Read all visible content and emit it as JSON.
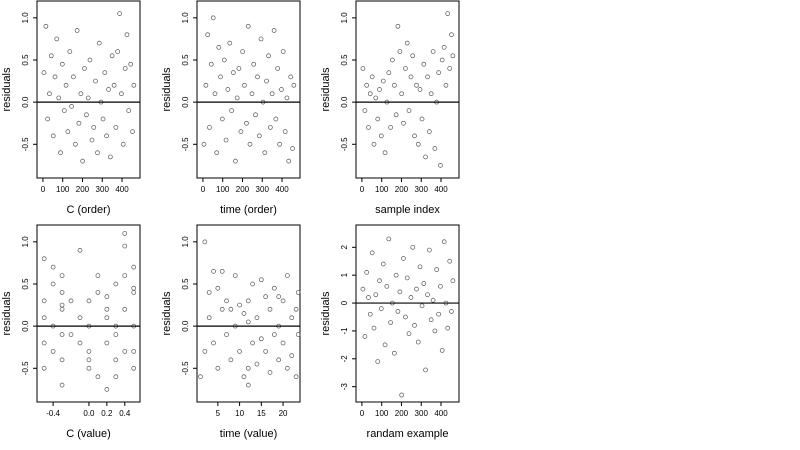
{
  "chart_data": [
    {
      "type": "scatter",
      "xlabel": "C (order)",
      "ylabel": "residuals",
      "color": "#555",
      "hline": 0,
      "xlim": [
        -30,
        491
      ],
      "ylim": [
        -0.9,
        1.2
      ],
      "xticks": [
        0,
        100,
        200,
        300,
        400
      ],
      "yticks": [
        {
          "value": 1,
          "label": "1.0"
        },
        0.5,
        {
          "value": 0,
          "label": "0.0"
        },
        -0.5
      ],
      "x": [
        5,
        15,
        24,
        33,
        42,
        52,
        61,
        70,
        80,
        89,
        98,
        108,
        117,
        126,
        136,
        145,
        154,
        164,
        173,
        182,
        192,
        201,
        210,
        220,
        229,
        238,
        248,
        257,
        266,
        276,
        285,
        294,
        304,
        313,
        322,
        332,
        341,
        350,
        360,
        369,
        378,
        388,
        397,
        406,
        416,
        425,
        434,
        444,
        453,
        460
      ],
      "values": [
        0.35,
        0.9,
        -0.2,
        0.1,
        0.55,
        -0.4,
        0.3,
        0.75,
        0.05,
        -0.6,
        0.45,
        -0.1,
        0.2,
        -0.35,
        0.6,
        -0.05,
        0.3,
        -0.5,
        0.85,
        -0.25,
        0.1,
        -0.7,
        0.4,
        -0.15,
        0.05,
        0.5,
        -0.45,
        -0.3,
        0.25,
        -0.6,
        0.7,
        0.0,
        -0.2,
        0.35,
        -0.4,
        0.15,
        -0.65,
        0.55,
        0.2,
        -0.3,
        0.6,
        1.05,
        0.1,
        -0.5,
        0.4,
        0.8,
        -0.1,
        0.45,
        -0.35,
        0.2
      ]
    },
    {
      "type": "scatter",
      "xlabel": "time (order)",
      "ylabel": "residuals",
      "color": "#555",
      "hline": 0,
      "xlim": [
        -30,
        491
      ],
      "ylim": [
        -0.9,
        1.2
      ],
      "xticks": [
        0,
        100,
        200,
        300,
        400
      ],
      "yticks": [
        {
          "value": 1,
          "label": "1.0"
        },
        0.5,
        {
          "value": 0,
          "label": "0.0"
        },
        -0.5
      ],
      "x": [
        5,
        15,
        24,
        33,
        42,
        52,
        61,
        70,
        80,
        89,
        98,
        108,
        117,
        126,
        136,
        145,
        154,
        164,
        173,
        182,
        192,
        201,
        210,
        220,
        229,
        238,
        248,
        257,
        266,
        276,
        285,
        294,
        304,
        313,
        322,
        332,
        341,
        350,
        360,
        369,
        378,
        388,
        397,
        406,
        416,
        425,
        434,
        444,
        453,
        460
      ],
      "values": [
        -0.5,
        0.2,
        0.8,
        -0.3,
        0.45,
        1.0,
        0.1,
        -0.6,
        0.65,
        0.3,
        -0.2,
        0.5,
        -0.45,
        0.15,
        0.7,
        -0.1,
        0.35,
        -0.7,
        0.05,
        0.4,
        -0.35,
        0.6,
        0.2,
        -0.25,
        0.9,
        -0.5,
        0.1,
        0.45,
        -0.15,
        0.3,
        -0.4,
        0.75,
        0.0,
        -0.6,
        0.25,
        0.55,
        -0.3,
        0.1,
        0.85,
        -0.2,
        0.4,
        -0.5,
        0.15,
        0.6,
        -0.35,
        0.05,
        -0.7,
        0.3,
        -0.55,
        0.2
      ]
    },
    {
      "type": "scatter",
      "xlabel": "sample index",
      "ylabel": "residuals",
      "color": "#555",
      "hline": 0,
      "xlim": [
        -30,
        491
      ],
      "ylim": [
        -0.9,
        1.2
      ],
      "xticks": [
        0,
        100,
        200,
        300,
        400
      ],
      "yticks": [
        {
          "value": 1,
          "label": "1.0"
        },
        0.5,
        {
          "value": 0,
          "label": "0.0"
        },
        -0.5
      ],
      "x": [
        5,
        15,
        24,
        33,
        42,
        52,
        61,
        70,
        80,
        89,
        98,
        108,
        117,
        126,
        136,
        145,
        154,
        164,
        173,
        182,
        192,
        201,
        210,
        220,
        229,
        238,
        248,
        257,
        266,
        276,
        285,
        294,
        304,
        313,
        322,
        332,
        341,
        350,
        360,
        369,
        378,
        388,
        397,
        406,
        416,
        425,
        434,
        444,
        453,
        460
      ],
      "values": [
        0.4,
        -0.1,
        0.2,
        -0.3,
        0.1,
        0.3,
        -0.5,
        0.05,
        -0.2,
        0.15,
        -0.4,
        0.25,
        -0.6,
        0.0,
        0.35,
        -0.3,
        0.5,
        0.2,
        -0.15,
        0.9,
        0.6,
        0.1,
        -0.25,
        0.4,
        0.7,
        -0.1,
        0.3,
        0.55,
        -0.4,
        0.2,
        -0.5,
        0.15,
        -0.2,
        0.45,
        -0.65,
        0.3,
        -0.35,
        0.1,
        0.6,
        -0.55,
        0.0,
        0.35,
        -0.75,
        0.5,
        0.65,
        0.2,
        1.05,
        0.4,
        0.8,
        0.55
      ]
    },
    {
      "type": "scatter",
      "xlabel": "C (value)",
      "ylabel": "residuals",
      "color": "#555",
      "hline": 0,
      "xlim": [
        -0.58,
        0.57
      ],
      "ylim": [
        -0.9,
        1.2
      ],
      "xticks": [
        -0.4,
        {
          "value": 0,
          "label": "0.0"
        },
        0.2,
        0.4
      ],
      "yticks": [
        {
          "value": 1,
          "label": "1.0"
        },
        0.5,
        {
          "value": 0,
          "label": "0.0"
        },
        -0.5
      ],
      "x": [
        -0.5,
        -0.5,
        -0.5,
        -0.5,
        -0.4,
        -0.4,
        -0.4,
        -0.3,
        -0.3,
        -0.3,
        -0.3,
        -0.3,
        -0.3,
        -0.2,
        -0.2,
        -0.1,
        -0.1,
        -0.1,
        0.0,
        0.0,
        0.0,
        0.0,
        0.1,
        0.1,
        0.2,
        0.2,
        0.2,
        0.2,
        0.3,
        0.3,
        0.3,
        0.3,
        0.4,
        0.4,
        0.4,
        0.4,
        0.5,
        0.5,
        0.5,
        0.5,
        0.5,
        -0.5,
        -0.4,
        -0.3,
        0.0,
        0.1,
        0.2,
        0.3,
        0.4,
        0.5
      ],
      "values": [
        0.3,
        -0.2,
        0.8,
        -0.5,
        0.5,
        0.0,
        -0.3,
        0.4,
        -0.7,
        -0.1,
        0.6,
        -0.4,
        0.2,
        0.3,
        -0.1,
        0.9,
        -0.2,
        0.1,
        -0.5,
        0.3,
        -0.3,
        0.0,
        0.4,
        -0.6,
        0.2,
        -0.2,
        -0.75,
        0.1,
        0.5,
        -0.4,
        0.0,
        -0.6,
        1.1,
        0.6,
        -0.3,
        0.2,
        0.4,
        -0.5,
        0.7,
        0.0,
        -0.3,
        0.1,
        0.7,
        0.25,
        -0.4,
        0.6,
        0.35,
        -0.1,
        0.95,
        0.45
      ]
    },
    {
      "type": "scatter",
      "xlabel": "time (value)",
      "ylabel": "residuals",
      "color": "#555",
      "hline": 0,
      "xlim": [
        0.2,
        23.9
      ],
      "ylim": [
        -0.9,
        1.2
      ],
      "xticks": [
        5,
        10,
        15,
        20
      ],
      "yticks": [
        {
          "value": 1,
          "label": "1.0"
        },
        0.5,
        {
          "value": 0,
          "label": "0.0"
        },
        -0.5
      ],
      "x": [
        1,
        2,
        2,
        3,
        3,
        4,
        5,
        5,
        6,
        6,
        7,
        7,
        8,
        9,
        9,
        10,
        10,
        11,
        11,
        12,
        12,
        12,
        13,
        13,
        14,
        14,
        15,
        15,
        16,
        16,
        17,
        17,
        18,
        18,
        19,
        19,
        20,
        20,
        21,
        21,
        22,
        22,
        23,
        23,
        23.5,
        23.5,
        12,
        4,
        8,
        19
      ],
      "values": [
        -0.6,
        1.0,
        -0.3,
        0.4,
        0.1,
        -0.2,
        0.45,
        -0.5,
        0.65,
        0.2,
        -0.1,
        0.3,
        -0.4,
        0.6,
        0.0,
        -0.3,
        0.25,
        -0.6,
        0.15,
        0.3,
        -0.7,
        0.05,
        0.5,
        -0.2,
        -0.45,
        0.1,
        0.55,
        -0.15,
        0.35,
        -0.3,
        -0.55,
        0.2,
        0.45,
        -0.1,
        0.0,
        -0.4,
        0.3,
        -0.2,
        0.6,
        -0.5,
        0.1,
        -0.35,
        -0.6,
        0.2,
        0.4,
        -0.1,
        -0.5,
        0.65,
        0.2,
        0.35
      ]
    },
    {
      "type": "scatter",
      "xlabel": "randam example",
      "ylabel": "residuals",
      "color": "#555",
      "hline": 0,
      "xlim": [
        -30,
        491
      ],
      "ylim": [
        -3.55,
        2.8
      ],
      "xticks": [
        0,
        100,
        200,
        300,
        400
      ],
      "yticks": [
        2,
        1,
        0,
        -1,
        -2,
        -3
      ],
      "x": [
        5,
        15,
        24,
        33,
        42,
        52,
        61,
        70,
        80,
        89,
        98,
        108,
        117,
        126,
        136,
        145,
        154,
        164,
        173,
        182,
        192,
        201,
        210,
        220,
        229,
        238,
        248,
        257,
        266,
        276,
        285,
        294,
        304,
        313,
        322,
        332,
        341,
        350,
        360,
        369,
        378,
        388,
        397,
        406,
        416,
        425,
        434,
        444,
        453,
        460
      ],
      "values": [
        0.5,
        -1.2,
        1.1,
        0.2,
        -0.4,
        1.8,
        -0.9,
        0.3,
        -2.1,
        0.8,
        -0.2,
        1.4,
        -1.5,
        0.6,
        2.3,
        -0.7,
        0.0,
        -1.8,
        1.0,
        -0.3,
        0.4,
        -3.3,
        1.6,
        -0.5,
        0.9,
        -1.1,
        0.2,
        2.0,
        -0.8,
        0.5,
        -1.4,
        1.3,
        -0.1,
        0.7,
        -2.4,
        0.3,
        1.9,
        -0.6,
        0.1,
        -1.0,
        1.2,
        -0.4,
        0.6,
        -1.7,
        2.2,
        0.0,
        -0.9,
        1.5,
        -0.3,
        0.8
      ]
    }
  ]
}
